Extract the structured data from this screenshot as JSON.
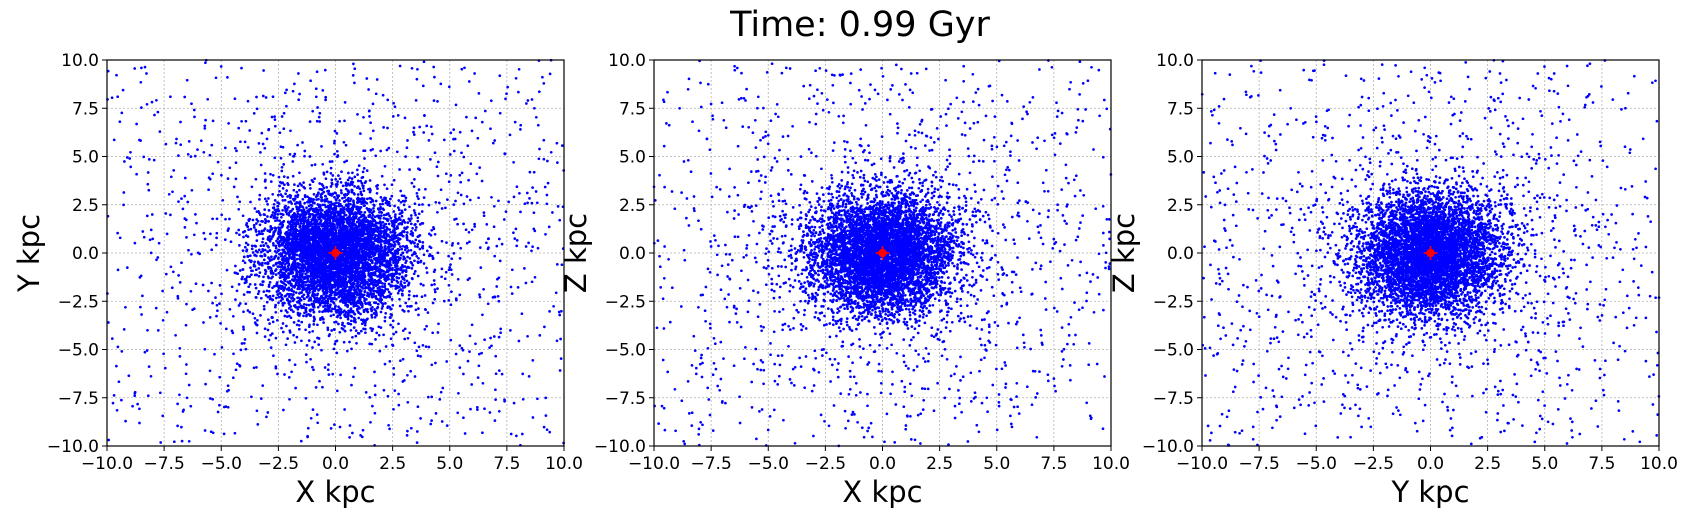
{
  "figure": {
    "title": "Time: 0.99 Gyr"
  },
  "colors": {
    "particles": "#0000ff",
    "center_marker": "#ff0000",
    "grid": "#b0b0b0",
    "axes": "#000000"
  },
  "chart_data": [
    {
      "type": "scatter",
      "xlabel": "X kpc",
      "ylabel": "Y kpc",
      "xlim": [
        -10,
        10
      ],
      "ylim": [
        -10,
        10
      ],
      "xticks": [
        "−10.0",
        "−7.5",
        "−5.0",
        "−2.5",
        "0.0",
        "2.5",
        "5.0",
        "7.5",
        "10.0"
      ],
      "yticks": [
        "−10.0",
        "−7.5",
        "−5.0",
        "−2.5",
        "0.0",
        "2.5",
        "5.0",
        "7.5",
        "10.0"
      ],
      "grid": true,
      "series": [
        {
          "color": "#0000ff",
          "marker": "dot",
          "distribution": "dense cluster centred at (0, 0), core radius ~2 kpc, sparse halo to the axis limits"
        },
        {
          "color": "#ff0000",
          "marker": "star",
          "points": [
            [
              0,
              0
            ]
          ]
        }
      ]
    },
    {
      "type": "scatter",
      "xlabel": "X kpc",
      "ylabel": "Z kpc",
      "xlim": [
        -10,
        10
      ],
      "ylim": [
        -10,
        10
      ],
      "xticks": [
        "−10.0",
        "−7.5",
        "−5.0",
        "−2.5",
        "0.0",
        "2.5",
        "5.0",
        "7.5",
        "10.0"
      ],
      "yticks": [
        "−10.0",
        "−7.5",
        "−5.0",
        "−2.5",
        "0.0",
        "2.5",
        "5.0",
        "7.5",
        "10.0"
      ],
      "grid": true,
      "series": [
        {
          "color": "#0000ff",
          "marker": "dot",
          "distribution": "dense cluster centred at (0, 0), core radius ~2 kpc, sparse halo to the axis limits"
        },
        {
          "color": "#ff0000",
          "marker": "star",
          "points": [
            [
              0,
              0
            ]
          ]
        }
      ]
    },
    {
      "type": "scatter",
      "xlabel": "Y kpc",
      "ylabel": "Z kpc",
      "xlim": [
        -10,
        10
      ],
      "ylim": [
        -10,
        10
      ],
      "xticks": [
        "−10.0",
        "−7.5",
        "−5.0",
        "−2.5",
        "0.0",
        "2.5",
        "5.0",
        "7.5",
        "10.0"
      ],
      "yticks": [
        "−10.0",
        "−7.5",
        "−5.0",
        "−2.5",
        "0.0",
        "2.5",
        "5.0",
        "7.5",
        "10.0"
      ],
      "grid": true,
      "series": [
        {
          "color": "#0000ff",
          "marker": "dot",
          "distribution": "dense cluster centred at (0, 0), core radius ~2 kpc, sparse halo to the axis limits"
        },
        {
          "color": "#ff0000",
          "marker": "star",
          "points": [
            [
              0,
              0
            ]
          ]
        }
      ]
    }
  ]
}
